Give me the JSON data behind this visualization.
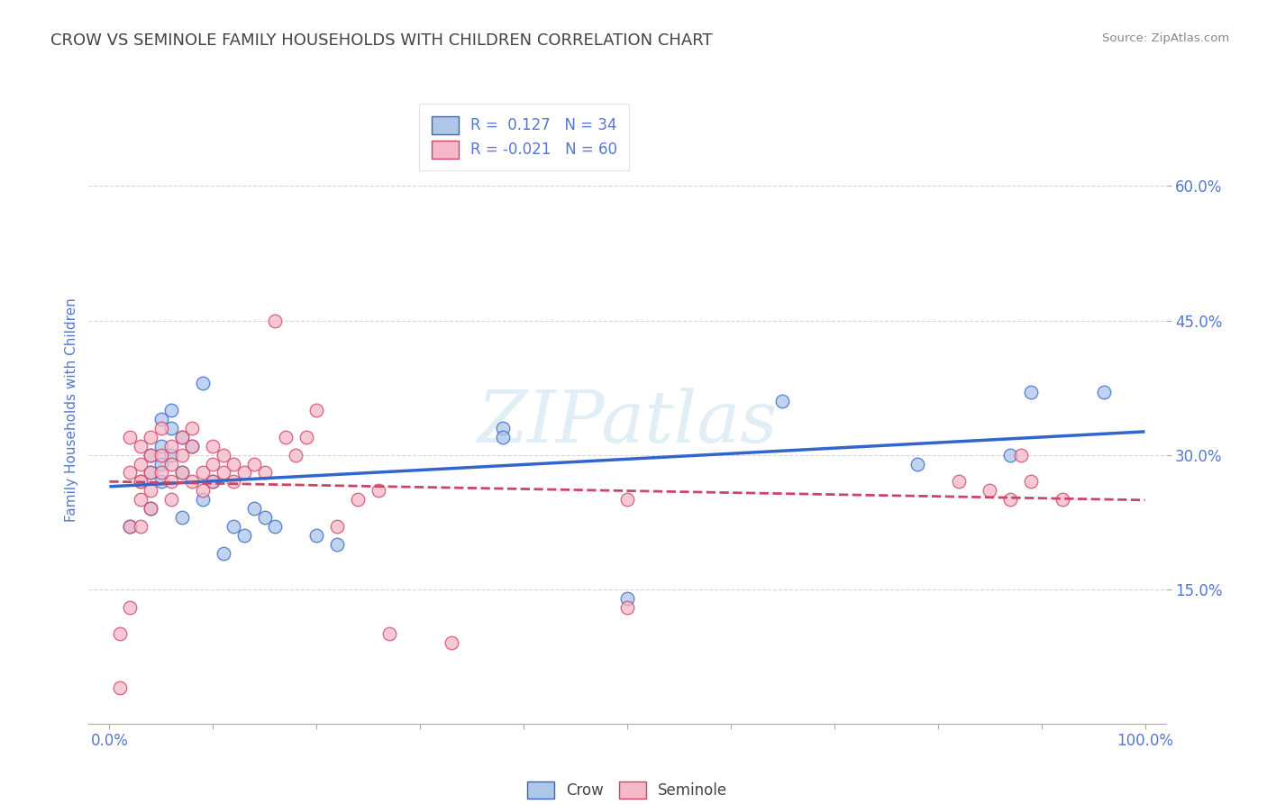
{
  "title": "CROW VS SEMINOLE FAMILY HOUSEHOLDS WITH CHILDREN CORRELATION CHART",
  "source": "Source: ZipAtlas.com",
  "ylabel": "Family Households with Children",
  "crow_R": 0.127,
  "crow_N": 34,
  "seminole_R": -0.021,
  "seminole_N": 60,
  "crow_color": "#aec6e8",
  "seminole_color": "#f5b8c8",
  "crow_line_color": "#3366cc",
  "seminole_line_color": "#cc4466",
  "watermark": "ZIPatlas",
  "xlim": [
    -0.02,
    1.02
  ],
  "ylim": [
    0.0,
    0.7
  ],
  "xticks": [
    0.0,
    0.1,
    0.2,
    0.3,
    0.4,
    0.5,
    0.6,
    0.7,
    0.8,
    0.9,
    1.0
  ],
  "yticks": [
    0.15,
    0.3,
    0.45,
    0.6
  ],
  "crow_x": [
    0.02,
    0.04,
    0.04,
    0.04,
    0.05,
    0.05,
    0.05,
    0.05,
    0.06,
    0.06,
    0.06,
    0.07,
    0.07,
    0.07,
    0.08,
    0.09,
    0.09,
    0.1,
    0.11,
    0.12,
    0.13,
    0.14,
    0.15,
    0.16,
    0.2,
    0.22,
    0.38,
    0.38,
    0.5,
    0.65,
    0.78,
    0.87,
    0.89,
    0.96
  ],
  "crow_y": [
    0.22,
    0.3,
    0.28,
    0.24,
    0.34,
    0.31,
    0.29,
    0.27,
    0.35,
    0.33,
    0.3,
    0.32,
    0.28,
    0.23,
    0.31,
    0.38,
    0.25,
    0.27,
    0.19,
    0.22,
    0.21,
    0.24,
    0.23,
    0.22,
    0.21,
    0.2,
    0.33,
    0.32,
    0.14,
    0.36,
    0.29,
    0.3,
    0.37,
    0.37
  ],
  "seminole_x": [
    0.01,
    0.01,
    0.02,
    0.02,
    0.02,
    0.02,
    0.03,
    0.03,
    0.03,
    0.03,
    0.03,
    0.03,
    0.04,
    0.04,
    0.04,
    0.04,
    0.04,
    0.05,
    0.05,
    0.05,
    0.06,
    0.06,
    0.06,
    0.06,
    0.07,
    0.07,
    0.07,
    0.08,
    0.08,
    0.08,
    0.09,
    0.09,
    0.1,
    0.1,
    0.1,
    0.11,
    0.11,
    0.12,
    0.12,
    0.13,
    0.14,
    0.15,
    0.16,
    0.17,
    0.18,
    0.19,
    0.2,
    0.22,
    0.24,
    0.26,
    0.27,
    0.33,
    0.5,
    0.5,
    0.82,
    0.85,
    0.87,
    0.88,
    0.89,
    0.92
  ],
  "seminole_y": [
    0.04,
    0.1,
    0.13,
    0.32,
    0.28,
    0.22,
    0.27,
    0.31,
    0.29,
    0.27,
    0.25,
    0.22,
    0.32,
    0.3,
    0.28,
    0.26,
    0.24,
    0.33,
    0.3,
    0.28,
    0.31,
    0.29,
    0.27,
    0.25,
    0.32,
    0.3,
    0.28,
    0.33,
    0.31,
    0.27,
    0.28,
    0.26,
    0.31,
    0.29,
    0.27,
    0.3,
    0.28,
    0.29,
    0.27,
    0.28,
    0.29,
    0.28,
    0.45,
    0.32,
    0.3,
    0.32,
    0.35,
    0.22,
    0.25,
    0.26,
    0.1,
    0.09,
    0.25,
    0.13,
    0.27,
    0.26,
    0.25,
    0.3,
    0.27,
    0.25
  ],
  "background_color": "#ffffff",
  "grid_color": "#cccccc",
  "title_color": "#444444",
  "tick_label_color": "#5577cc",
  "legend_text_color": "#444444",
  "source_color": "#888888"
}
